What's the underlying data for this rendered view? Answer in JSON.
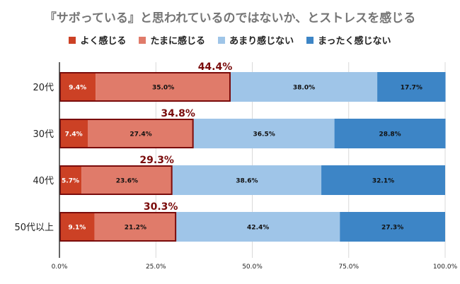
{
  "chart_data": {
    "type": "bar",
    "orientation": "horizontal",
    "stacked": true,
    "title": "『サボっている』と思われているのではないか、とストレスを感じる",
    "categories": [
      "20代",
      "30代",
      "40代",
      "50代以上"
    ],
    "series": [
      {
        "name": "よく感じる",
        "color": "#cc4125",
        "values": [
          9.4,
          7.4,
          5.7,
          9.1
        ],
        "labels": [
          "9.4%",
          "7.4%",
          "5.7%",
          "9.1%"
        ]
      },
      {
        "name": "たまに感じる",
        "color": "#e07b6a",
        "values": [
          35.0,
          27.4,
          23.6,
          21.2
        ],
        "labels": [
          "35.0%",
          "27.4%",
          "23.6%",
          "21.2%"
        ]
      },
      {
        "name": "あまり感じない",
        "color": "#9fc5e8",
        "values": [
          38.0,
          36.5,
          38.6,
          42.4
        ],
        "labels": [
          "38.0%",
          "36.5%",
          "38.6%",
          "42.4%"
        ]
      },
      {
        "name": "まったく感じない",
        "color": "#3d85c6",
        "values": [
          17.7,
          28.8,
          32.1,
          27.3
        ],
        "labels": [
          "17.7%",
          "28.8%",
          "32.1%",
          "27.3%"
        ]
      }
    ],
    "totals_first_two": [
      "44.4%",
      "34.8%",
      "29.3%",
      "30.3%"
    ],
    "totals_values": [
      44.4,
      34.8,
      29.3,
      30.3
    ],
    "xlim": [
      0,
      100
    ],
    "xticks": [
      0,
      25,
      50,
      75,
      100
    ],
    "xtick_labels": [
      "0.0%",
      "25.0%",
      "50.0%",
      "75.0%",
      "100.0%"
    ],
    "grid": true,
    "legend_position": "top",
    "highlight_color": "#7a0c0c"
  }
}
